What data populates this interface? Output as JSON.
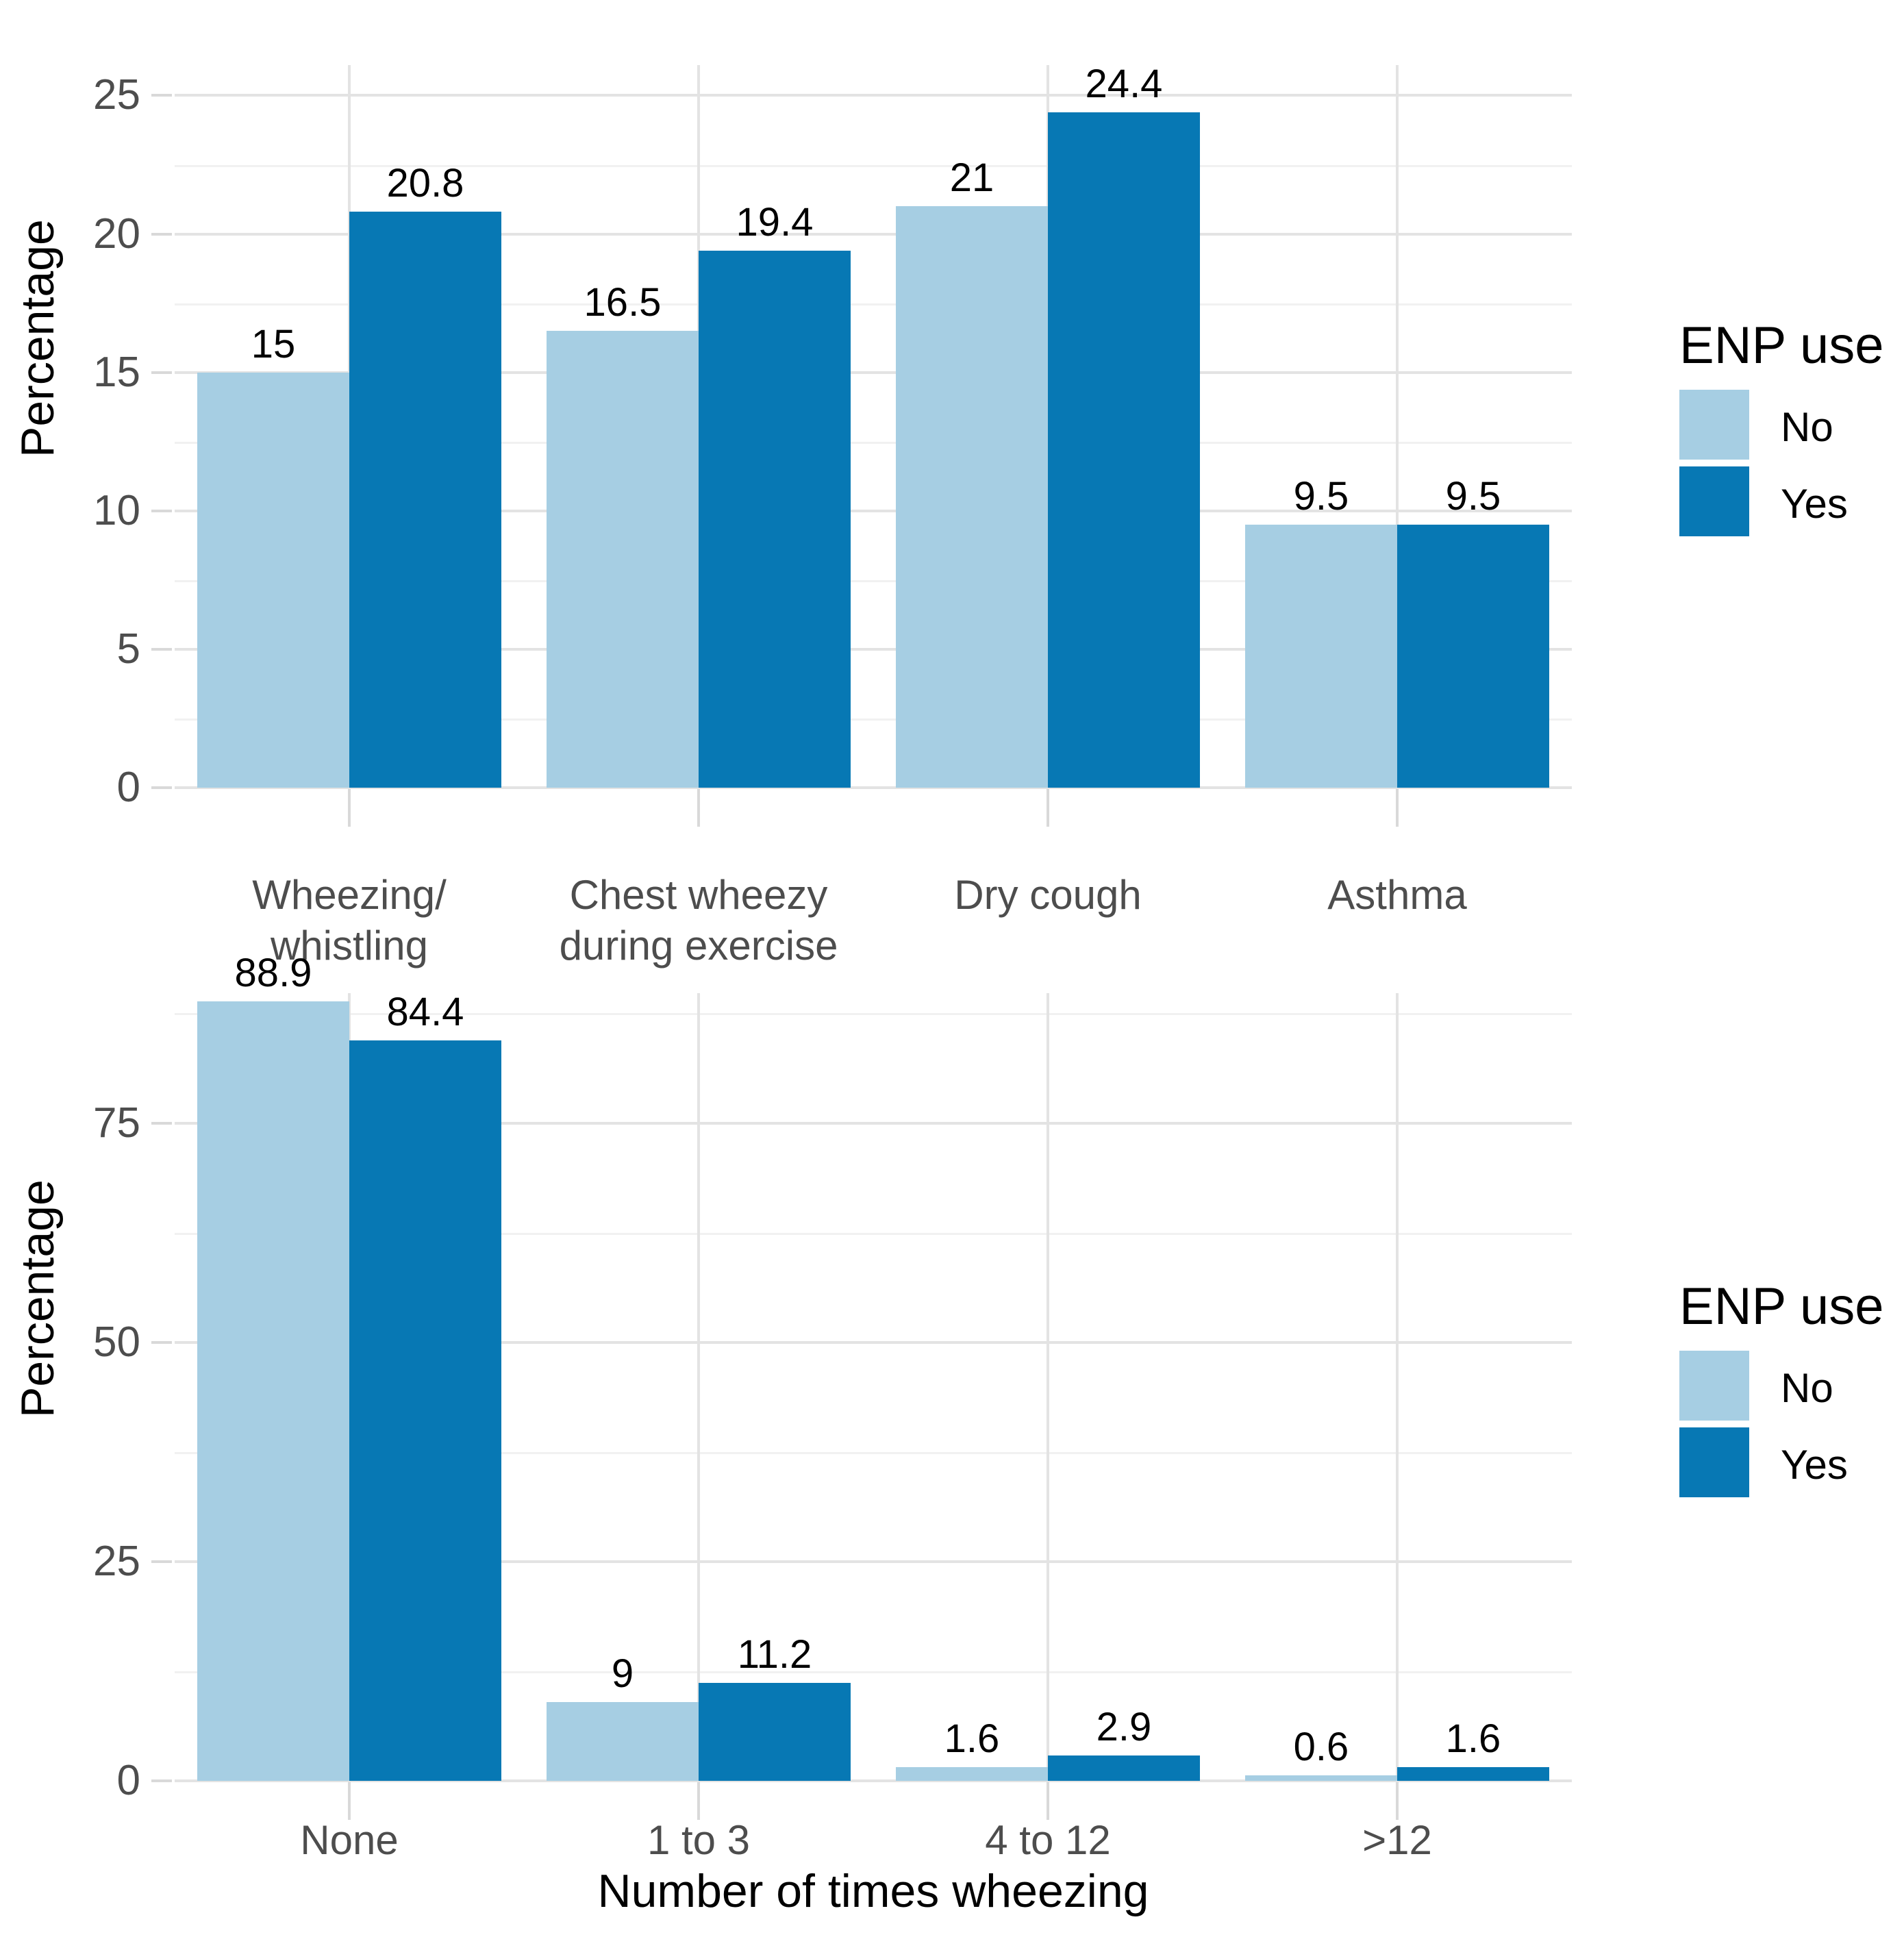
{
  "colors": {
    "no": "#A6CEE3",
    "yes": "#0778B4",
    "grid_major": "#e3e3e3",
    "grid_minor": "#f1f1f1",
    "tick_text": "#4d4d4d",
    "label_text": "#000000",
    "background": "#ffffff"
  },
  "legend": {
    "title": "ENP use",
    "items": [
      {
        "label": "No",
        "color_key": "no"
      },
      {
        "label": "Yes",
        "color_key": "yes"
      }
    ]
  },
  "chart_data": [
    {
      "type": "bar",
      "panel": "top",
      "title": "",
      "categories": [
        "Wheezing/\nwhistling",
        "Chest wheezy\nduring exercise",
        "Dry cough",
        "Asthma"
      ],
      "series": [
        {
          "name": "No",
          "values": [
            15,
            16.5,
            21,
            9.5
          ],
          "labels": [
            "15",
            "16.5",
            "21",
            "9.5"
          ]
        },
        {
          "name": "Yes",
          "values": [
            20.8,
            19.4,
            24.4,
            9.5
          ],
          "labels": [
            "20.8",
            "19.4",
            "24.4",
            "9.5"
          ]
        }
      ],
      "xlabel": "",
      "ylabel": "Percentage",
      "yticks": [
        0,
        5,
        10,
        15,
        20,
        25
      ],
      "yticks_minor": [
        2.5,
        7.5,
        12.5,
        17.5,
        22.5
      ],
      "ylim": [
        0,
        26.1
      ],
      "grid": "on",
      "legend_title": "ENP use",
      "legend_position": "right"
    },
    {
      "type": "bar",
      "panel": "bottom",
      "title": "",
      "categories": [
        "None",
        "1 to 3",
        "4 to 12",
        ">12"
      ],
      "series": [
        {
          "name": "No",
          "values": [
            88.9,
            9,
            1.6,
            0.6
          ],
          "labels": [
            "88.9",
            "9",
            "1.6",
            "0.6"
          ]
        },
        {
          "name": "Yes",
          "values": [
            84.4,
            11.2,
            2.9,
            1.6
          ],
          "labels": [
            "84.4",
            "11.2",
            "2.9",
            "1.6"
          ]
        }
      ],
      "xlabel": "Number of times wheezing",
      "ylabel": "Percentage",
      "yticks": [
        0,
        25,
        50,
        75
      ],
      "yticks_minor": [
        12.5,
        37.5,
        62.5,
        87.5
      ],
      "ylim": [
        0,
        89.8
      ],
      "grid": "on",
      "legend_title": "ENP use",
      "legend_position": "right"
    }
  ]
}
